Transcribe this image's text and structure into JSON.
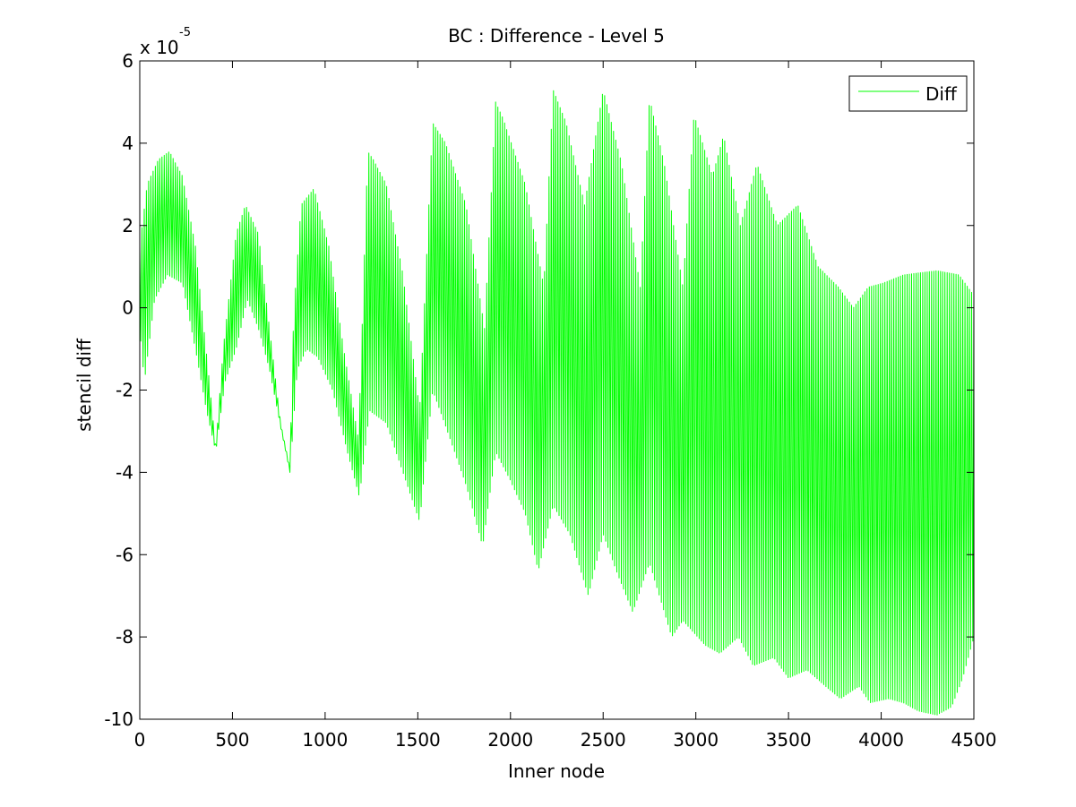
{
  "chart_data": {
    "type": "line",
    "title": "BC : Difference - Level 5",
    "xlabel": "Inner node",
    "ylabel": "stencil diff",
    "y_exponent_base": "x 10",
    "y_exponent_power": "-5",
    "xlim": [
      0,
      4500
    ],
    "ylim": [
      -10,
      6
    ],
    "x_ticks": [
      0,
      500,
      1000,
      1500,
      2000,
      2500,
      3000,
      3500,
      4000,
      4500
    ],
    "x_tick_labels": [
      "0",
      "500",
      "1000",
      "1500",
      "2000",
      "2500",
      "3000",
      "3500",
      "4000",
      "4500"
    ],
    "y_ticks": [
      -10,
      -8,
      -6,
      -4,
      -2,
      0,
      2,
      4,
      6
    ],
    "y_tick_labels": [
      "-10",
      "-8",
      "-6",
      "-4",
      "-2",
      "0",
      "2",
      "4",
      "6"
    ],
    "grid": false,
    "legend_position": "top-right",
    "series": [
      {
        "name": "Diff",
        "color": "#00ff00",
        "oscillation_period": 12,
        "envelope_upper": [
          [
            0,
            1.5
          ],
          [
            40,
            3
          ],
          [
            100,
            3.6
          ],
          [
            160,
            3.8
          ],
          [
            230,
            3.2
          ],
          [
            300,
            1.5
          ],
          [
            380,
            -2
          ],
          [
            410,
            -3.4
          ],
          [
            450,
            -1
          ],
          [
            520,
            1.8
          ],
          [
            570,
            2.5
          ],
          [
            640,
            1.8
          ],
          [
            700,
            -0.5
          ],
          [
            760,
            -2.8
          ],
          [
            810,
            -3.9
          ],
          [
            830,
            -0.2
          ],
          [
            870,
            2.5
          ],
          [
            940,
            2.9
          ],
          [
            1020,
            1.5
          ],
          [
            1100,
            -1
          ],
          [
            1180,
            -3.2
          ],
          [
            1230,
            3.8
          ],
          [
            1260,
            3.6
          ],
          [
            1330,
            3
          ],
          [
            1420,
            0.8
          ],
          [
            1510,
            -2.5
          ],
          [
            1580,
            4.5
          ],
          [
            1650,
            4
          ],
          [
            1760,
            2.5
          ],
          [
            1860,
            -0.5
          ],
          [
            1920,
            5
          ],
          [
            1960,
            4.6
          ],
          [
            2080,
            3
          ],
          [
            2180,
            0.5
          ],
          [
            2230,
            5.3
          ],
          [
            2300,
            4.5
          ],
          [
            2400,
            2.5
          ],
          [
            2500,
            5.3
          ],
          [
            2600,
            3.5
          ],
          [
            2700,
            0.5
          ],
          [
            2750,
            5.1
          ],
          [
            2830,
            3.5
          ],
          [
            2930,
            0.5
          ],
          [
            2990,
            4.7
          ],
          [
            3090,
            3.2
          ],
          [
            3150,
            4.2
          ],
          [
            3240,
            2
          ],
          [
            3330,
            3.5
          ],
          [
            3440,
            2
          ],
          [
            3550,
            2.5
          ],
          [
            3660,
            1
          ],
          [
            3770,
            0.5
          ],
          [
            3850,
            0
          ],
          [
            3930,
            0.5
          ],
          [
            4010,
            0.6
          ],
          [
            4120,
            0.8
          ],
          [
            4300,
            0.9
          ],
          [
            4420,
            0.8
          ],
          [
            4500,
            0.3
          ]
        ],
        "envelope_lower": [
          [
            0,
            -0.5
          ],
          [
            25,
            -1.8
          ],
          [
            80,
            0.2
          ],
          [
            150,
            0.8
          ],
          [
            230,
            0.6
          ],
          [
            300,
            -1
          ],
          [
            360,
            -2.5
          ],
          [
            410,
            -3.5
          ],
          [
            460,
            -1.8
          ],
          [
            520,
            -1
          ],
          [
            580,
            0.2
          ],
          [
            640,
            -0.5
          ],
          [
            700,
            -1.5
          ],
          [
            760,
            -2.9
          ],
          [
            810,
            -4
          ],
          [
            850,
            -1.5
          ],
          [
            900,
            -1
          ],
          [
            960,
            -1.2
          ],
          [
            1040,
            -2
          ],
          [
            1120,
            -3.5
          ],
          [
            1185,
            -4.6
          ],
          [
            1240,
            -2.5
          ],
          [
            1330,
            -2.8
          ],
          [
            1420,
            -4
          ],
          [
            1510,
            -5.2
          ],
          [
            1580,
            -2
          ],
          [
            1660,
            -3
          ],
          [
            1760,
            -4.3
          ],
          [
            1850,
            -5.8
          ],
          [
            1920,
            -3.5
          ],
          [
            2000,
            -4.2
          ],
          [
            2080,
            -5
          ],
          [
            2150,
            -6.4
          ],
          [
            2230,
            -4.8
          ],
          [
            2320,
            -5.5
          ],
          [
            2420,
            -7
          ],
          [
            2500,
            -5.5
          ],
          [
            2580,
            -6.5
          ],
          [
            2660,
            -7.4
          ],
          [
            2750,
            -6.2
          ],
          [
            2870,
            -8
          ],
          [
            2930,
            -7.6
          ],
          [
            3050,
            -8.2
          ],
          [
            3130,
            -8.4
          ],
          [
            3230,
            -8
          ],
          [
            3310,
            -8.7
          ],
          [
            3420,
            -8.5
          ],
          [
            3500,
            -9
          ],
          [
            3600,
            -8.8
          ],
          [
            3700,
            -9.2
          ],
          [
            3780,
            -9.5
          ],
          [
            3880,
            -9.2
          ],
          [
            3940,
            -9.6
          ],
          [
            4040,
            -9.5
          ],
          [
            4120,
            -9.6
          ],
          [
            4200,
            -9.8
          ],
          [
            4300,
            -9.9
          ],
          [
            4380,
            -9.7
          ],
          [
            4440,
            -9
          ],
          [
            4500,
            -8
          ]
        ]
      }
    ]
  }
}
